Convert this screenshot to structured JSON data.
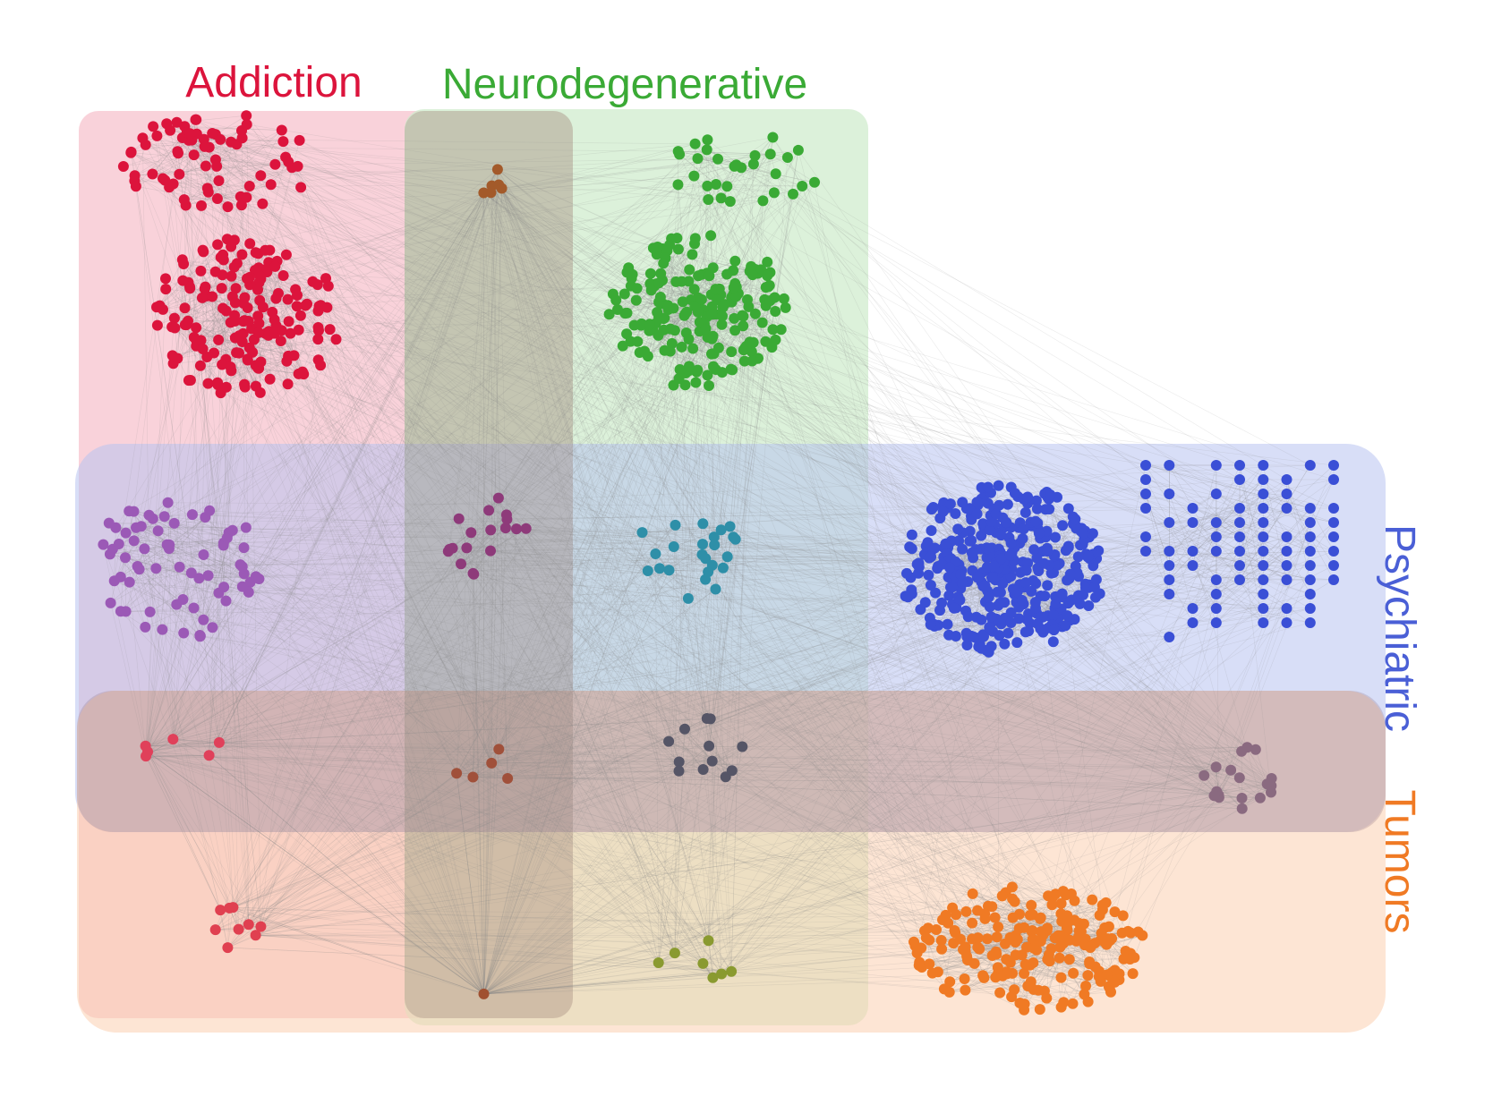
{
  "labels": {
    "addiction": "Addiction",
    "neurodegenerative": "Neurodegenerative",
    "psychiatric": "Psychiatric",
    "tumors": "Tumors"
  },
  "colors": {
    "addiction": "#dc143c",
    "neurodegenerative": "#3aaa35",
    "psychiatric": "#4a5fd6",
    "tumors": "#f07a24",
    "addiction_region": "#f7c0cc",
    "neuro_region": "#cfeccc",
    "psych_region": "#c7cff3",
    "tumor_region": "#fdd9c0",
    "brown_band": "#b79d86",
    "mauve_band": "#a88a92",
    "edge": "#8a8a8a"
  },
  "clusters": [
    {
      "id": "addiction-top",
      "color": "#dc143c",
      "count": 70
    },
    {
      "id": "addiction-main",
      "color": "#dc143c",
      "count": 170
    },
    {
      "id": "addiction-brown",
      "color": "#a35a2a",
      "count": 6
    },
    {
      "id": "neuro-top",
      "color": "#3aaa35",
      "count": 30
    },
    {
      "id": "neuro-main",
      "color": "#3aaa35",
      "count": 190
    },
    {
      "id": "addiction-psychiatric",
      "color": "#9b59b6",
      "count": 70
    },
    {
      "id": "addiction-neuro-psychiatric",
      "color": "#8e3a7a",
      "count": 18
    },
    {
      "id": "neuro-psychiatric",
      "color": "#2e8fa8",
      "count": 24
    },
    {
      "id": "psychiatric-main",
      "color": "#3a4fd6",
      "count": 380
    },
    {
      "id": "psychiatric-grid",
      "color": "#3a4fd6",
      "count": 110
    },
    {
      "id": "addiction-psychiatric-tumors",
      "color": "#e0405a",
      "count": 6
    },
    {
      "id": "addiction-neuro-psychiatric-tumors",
      "color": "#a0503a",
      "count": 5
    },
    {
      "id": "neuro-psychiatric-tumors",
      "color": "#555566",
      "count": 12
    },
    {
      "id": "psychiatric-tumors",
      "color": "#8a6a80",
      "count": 18
    },
    {
      "id": "addiction-tumors",
      "color": "#e04050",
      "count": 9
    },
    {
      "id": "addiction-neuro-tumors",
      "color": "#a05030",
      "count": 1
    },
    {
      "id": "neuro-tumors",
      "color": "#8a9a30",
      "count": 7
    },
    {
      "id": "tumors-main",
      "color": "#f07a24",
      "count": 210
    }
  ]
}
